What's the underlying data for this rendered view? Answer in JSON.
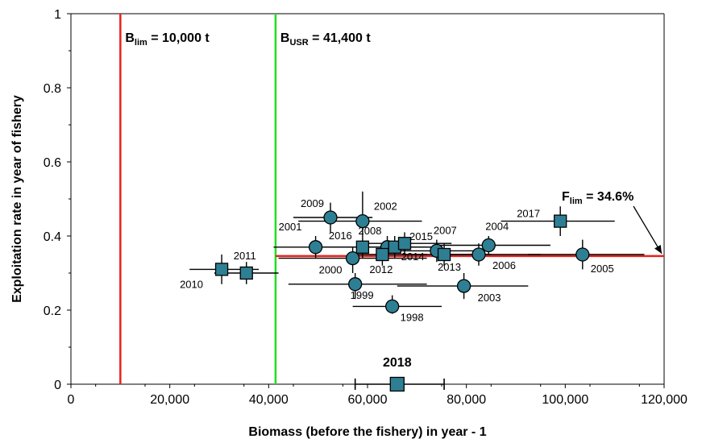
{
  "chart_data": {
    "type": "scatter",
    "title": "",
    "xlabel": "Biomass (before the fishery) in year - 1",
    "ylabel": "Exploitation rate in year of fishery",
    "xlim": [
      0,
      120000
    ],
    "ylim": [
      0,
      1
    ],
    "x_ticks": [
      0,
      20000,
      40000,
      60000,
      80000,
      100000,
      120000
    ],
    "x_tick_labels": [
      "0",
      "20,000",
      "40,000",
      "60,000",
      "80,000",
      "100,000",
      "120,000"
    ],
    "y_ticks": [
      0,
      0.2,
      0.4,
      0.6,
      0.8,
      1
    ],
    "y_tick_labels": [
      "0",
      "0.2",
      "0.4",
      "0.6",
      "0.8",
      "1"
    ],
    "grid": false,
    "marker_color": "#2e7f94",
    "reference_lines": [
      {
        "id": "blim",
        "orientation": "vertical",
        "value": 10000,
        "color": "#e8211c",
        "label_main": "B",
        "label_sub": "lim",
        "label_rest": " = 10,000 t"
      },
      {
        "id": "busr",
        "orientation": "vertical",
        "value": 41400,
        "color": "#22dd22",
        "label_main": "B",
        "label_sub": "USR",
        "label_rest": " = 41,400 t"
      },
      {
        "id": "flim",
        "orientation": "horizontal",
        "value": 0.346,
        "x_from": 41400,
        "x_to": 120000,
        "color": "#e8211c",
        "label_main": "F",
        "label_sub": "lim",
        "label_rest": " = 34.6%"
      }
    ],
    "points": [
      {
        "year": "1998",
        "x": 65000,
        "y": 0.21,
        "xerr": [
          57000,
          75000
        ],
        "yerr": [
          0.19,
          0.24
        ],
        "marker": "circle"
      },
      {
        "year": "1999",
        "x": 57500,
        "y": 0.27,
        "xerr": [
          44000,
          72000
        ],
        "yerr": [
          0.23,
          0.3
        ],
        "marker": "circle"
      },
      {
        "year": "2000",
        "x": 57000,
        "y": 0.34,
        "xerr": [
          42000,
          72000
        ],
        "yerr": [
          0.3,
          0.37
        ],
        "marker": "circle"
      },
      {
        "year": "2001",
        "x": 49500,
        "y": 0.37,
        "xerr": [
          41000,
          72000
        ],
        "yerr": [
          0.34,
          0.4
        ],
        "marker": "circle"
      },
      {
        "year": "2002",
        "x": 59000,
        "y": 0.44,
        "xerr": [
          46000,
          71000
        ],
        "yerr": [
          0.4,
          0.52
        ],
        "marker": "circle"
      },
      {
        "year": "2003",
        "x": 79500,
        "y": 0.265,
        "xerr": [
          66000,
          92500
        ],
        "yerr": [
          0.23,
          0.3
        ],
        "marker": "circle"
      },
      {
        "year": "2004",
        "x": 84500,
        "y": 0.375,
        "xerr": [
          74000,
          97000
        ],
        "yerr": [
          0.35,
          0.4
        ],
        "marker": "circle"
      },
      {
        "year": "2005",
        "x": 103500,
        "y": 0.35,
        "xerr": [
          92500,
          116000
        ],
        "yerr": [
          0.31,
          0.39
        ],
        "marker": "circle"
      },
      {
        "year": "2006",
        "x": 82500,
        "y": 0.35,
        "xerr": [
          74000,
          95000
        ],
        "yerr": [
          0.32,
          0.38
        ],
        "marker": "circle"
      },
      {
        "year": "2007",
        "x": 74000,
        "y": 0.36,
        "xerr": [
          64000,
          85000
        ],
        "yerr": [
          0.33,
          0.39
        ],
        "marker": "circle"
      },
      {
        "year": "2008",
        "x": 64000,
        "y": 0.37,
        "xerr": [
          56000,
          73000
        ],
        "yerr": [
          0.34,
          0.4
        ],
        "marker": "circle"
      },
      {
        "year": "2009",
        "x": 52500,
        "y": 0.45,
        "xerr": [
          45000,
          61000
        ],
        "yerr": [
          0.41,
          0.49
        ],
        "marker": "circle"
      },
      {
        "year": "2010",
        "x": 30500,
        "y": 0.31,
        "xerr": [
          24000,
          38000
        ],
        "yerr": [
          0.27,
          0.35
        ],
        "marker": "square"
      },
      {
        "year": "2011",
        "x": 35500,
        "y": 0.3,
        "xerr": [
          29000,
          42000
        ],
        "yerr": [
          0.27,
          0.33
        ],
        "marker": "square"
      },
      {
        "year": "2012",
        "x": 63000,
        "y": 0.35,
        "xerr": [
          56000,
          72000
        ],
        "yerr": [
          0.32,
          0.38
        ],
        "marker": "square"
      },
      {
        "year": "2013",
        "x": 75500,
        "y": 0.35,
        "xerr": [
          67000,
          85000
        ],
        "yerr": [
          0.32,
          0.38
        ],
        "marker": "square"
      },
      {
        "year": "2014",
        "x": 65500,
        "y": 0.37,
        "xerr": [
          58000,
          75000
        ],
        "yerr": [
          0.34,
          0.4
        ],
        "marker": "square"
      },
      {
        "year": "2015",
        "x": 67500,
        "y": 0.38,
        "xerr": [
          60000,
          77000
        ],
        "yerr": [
          0.35,
          0.41
        ],
        "marker": "square"
      },
      {
        "year": "2016",
        "x": 59000,
        "y": 0.37,
        "xerr": [
          51000,
          68000
        ],
        "yerr": [
          0.34,
          0.4
        ],
        "marker": "square"
      },
      {
        "year": "2017",
        "x": 99000,
        "y": 0.44,
        "xerr": [
          87000,
          110000
        ],
        "yerr": [
          0.4,
          0.48
        ],
        "marker": "square"
      },
      {
        "year": "2018",
        "x": 66000,
        "y": 0,
        "xerr": [
          57500,
          75500
        ],
        "yerr": null,
        "marker": "square",
        "highlight": true
      }
    ]
  }
}
